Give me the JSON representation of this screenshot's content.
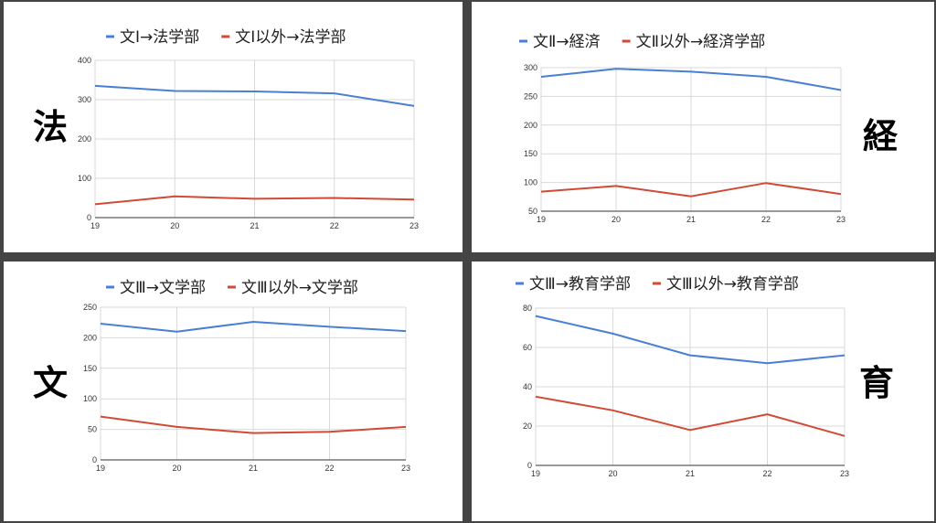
{
  "panels": [
    {
      "faculty_label": "法",
      "legend": [
        "文Ⅰ→法学部",
        "文Ⅰ以外→法学部"
      ],
      "colors": [
        "#4a7fd4",
        "#d04a36"
      ]
    },
    {
      "faculty_label": "経",
      "legend": [
        "文Ⅱ→経済",
        "文Ⅱ以外→経済学部"
      ],
      "colors": [
        "#4a7fd4",
        "#d04a36"
      ]
    },
    {
      "faculty_label": "文",
      "legend": [
        "文Ⅲ→文学部",
        "文Ⅲ以外→文学部"
      ],
      "colors": [
        "#4a7fd4",
        "#d04a36"
      ]
    },
    {
      "faculty_label": "育",
      "legend": [
        "文Ⅲ→教育学部",
        "文Ⅲ以外→教育学部"
      ],
      "colors": [
        "#4a7fd4",
        "#d04a36"
      ]
    }
  ],
  "chart_data": [
    {
      "type": "line",
      "x": [
        "19",
        "20",
        "21",
        "22",
        "23"
      ],
      "series": [
        {
          "name": "文Ⅰ→法学部",
          "values": [
            335,
            322,
            321,
            316,
            284
          ]
        },
        {
          "name": "文Ⅰ以外→法学部",
          "values": [
            34,
            54,
            48,
            50,
            46
          ]
        }
      ],
      "ylim": [
        0,
        400
      ],
      "yticks": [
        "0",
        "100",
        "200",
        "300",
        "400"
      ],
      "grid": true,
      "legend": "top"
    },
    {
      "type": "line",
      "x": [
        "19",
        "20",
        "21",
        "22",
        "23"
      ],
      "series": [
        {
          "name": "文Ⅱ→経済",
          "values": [
            284,
            298,
            293,
            284,
            261
          ]
        },
        {
          "name": "文Ⅱ以外→経済学部",
          "values": [
            84,
            94,
            76,
            99,
            80
          ]
        }
      ],
      "ylim": [
        50,
        300
      ],
      "yticks": [
        "50",
        "100",
        "150",
        "200",
        "250",
        "300"
      ],
      "grid": true,
      "legend": "top"
    },
    {
      "type": "line",
      "x": [
        "19",
        "20",
        "21",
        "22",
        "23"
      ],
      "series": [
        {
          "name": "文Ⅲ→文学部",
          "values": [
            223,
            210,
            226,
            218,
            211
          ]
        },
        {
          "name": "文Ⅲ以外→文学部",
          "values": [
            71,
            54,
            44,
            46,
            54
          ]
        }
      ],
      "ylim": [
        0,
        250
      ],
      "yticks": [
        "0",
        "50",
        "100",
        "150",
        "200",
        "250"
      ],
      "grid": true,
      "legend": "top"
    },
    {
      "type": "line",
      "x": [
        "19",
        "20",
        "21",
        "22",
        "23"
      ],
      "series": [
        {
          "name": "文Ⅲ→教育学部",
          "values": [
            76,
            67,
            56,
            52,
            56
          ]
        },
        {
          "name": "文Ⅲ以外→教育学部",
          "values": [
            35,
            28,
            18,
            26,
            15
          ]
        }
      ],
      "ylim": [
        0,
        80
      ],
      "yticks": [
        "0",
        "20",
        "40",
        "60",
        "80"
      ],
      "grid": true,
      "legend": "top"
    }
  ]
}
